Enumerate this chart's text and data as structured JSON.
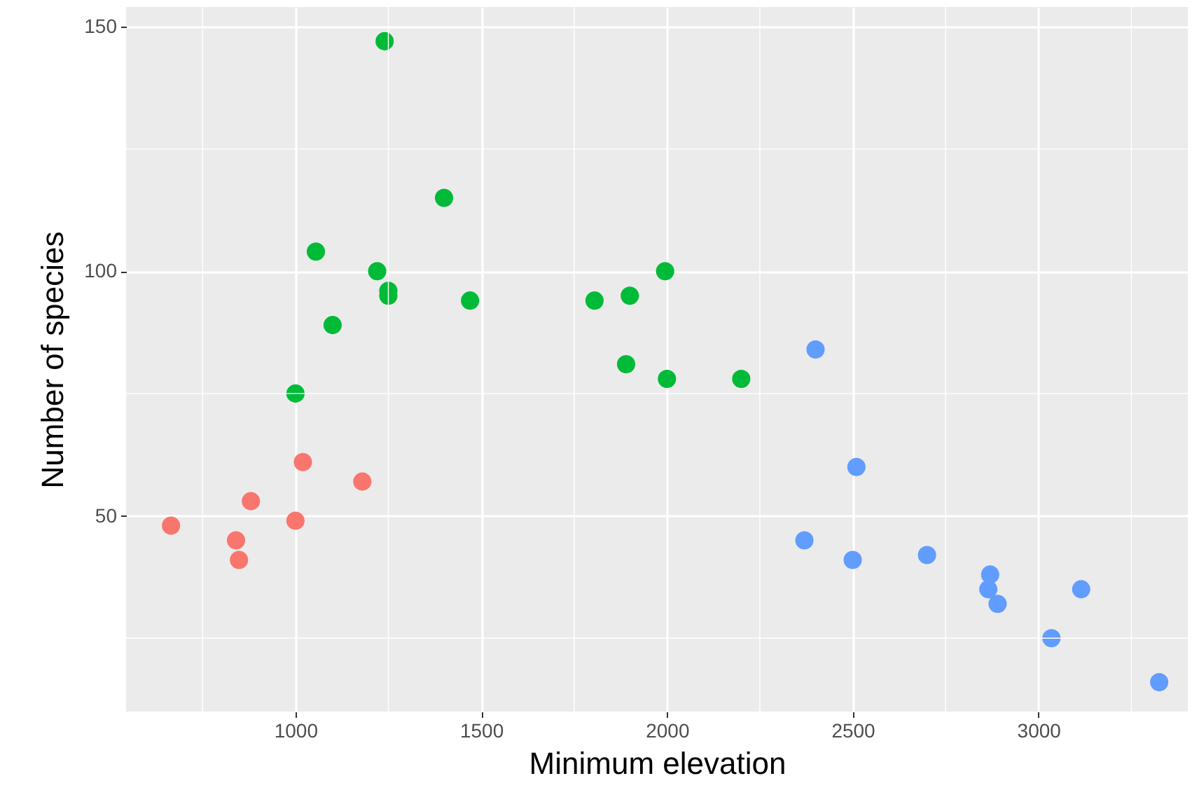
{
  "chart_data": {
    "type": "scatter",
    "xlabel": "Minimum elevation",
    "ylabel": "Number of species",
    "xlim": [
      544,
      3402
    ],
    "ylim": [
      10,
      154
    ],
    "xticks": [
      1000,
      1500,
      2000,
      2500,
      3000
    ],
    "yticks": [
      50,
      100,
      150
    ],
    "grid": true,
    "marker": "circle",
    "series": [
      {
        "color": "#f8766d",
        "x": [
          665,
          840,
          848,
          880,
          1000,
          1020,
          1180
        ],
        "values": [
          48,
          45,
          41,
          53,
          49,
          61,
          57
        ]
      },
      {
        "color": "#00ba38",
        "x": [
          1000,
          1055,
          1100,
          1220,
          1240,
          1250,
          1250,
          1400,
          1470,
          1805,
          1890,
          1900,
          1995,
          2000,
          2200
        ],
        "values": [
          75,
          104,
          89,
          100,
          147,
          96,
          95,
          115,
          94,
          94,
          81,
          95,
          100,
          78,
          78
        ]
      },
      {
        "color": "#619cff",
        "x": [
          2370,
          2400,
          2500,
          2510,
          2700,
          2870,
          2865,
          2890,
          3035,
          3115,
          3325
        ],
        "values": [
          45,
          84,
          41,
          60,
          42,
          38,
          35,
          32,
          25,
          35,
          16
        ]
      }
    ]
  }
}
